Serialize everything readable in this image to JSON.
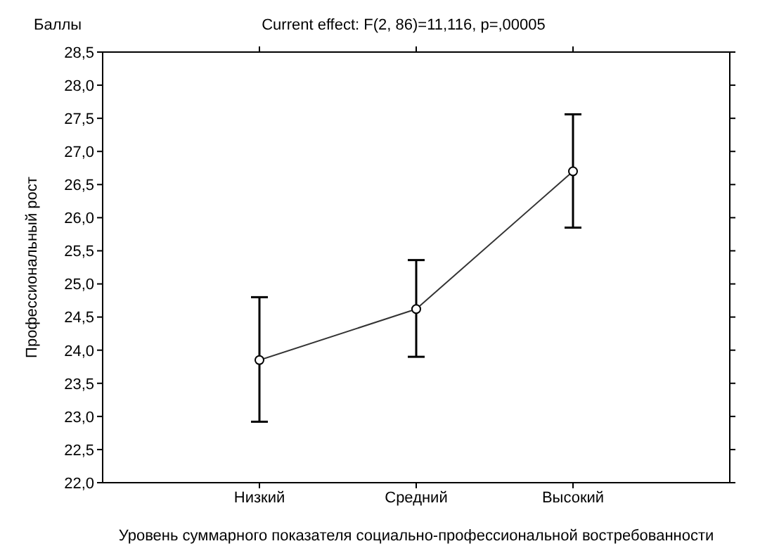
{
  "chart_data": {
    "type": "line",
    "title": "Current effect: F(2, 86)=11,116, p=,00005",
    "xlabel": "Уровень суммарного показателя социально-профессиональной востребованности",
    "ylabel": "Профессиональный рост",
    "annotations": [
      "Баллы"
    ],
    "categories": [
      "Низкий",
      "Средний",
      "Высокий"
    ],
    "series": [
      {
        "color": "#333333",
        "values": [
          23.85,
          24.62,
          26.7
        ],
        "errors": [
          [
            22.92,
            24.8
          ],
          [
            23.9,
            25.36
          ],
          [
            25.85,
            27.56
          ]
        ]
      }
    ],
    "ylim": [
      22.0,
      28.5
    ],
    "yticks": [
      {
        "value": 22.0,
        "label": "22,0"
      },
      {
        "value": 22.5,
        "label": "22,5"
      },
      {
        "value": 23.0,
        "label": "23,0"
      },
      {
        "value": 23.5,
        "label": "23,5"
      },
      {
        "value": 24.0,
        "label": "24,0"
      },
      {
        "value": 24.5,
        "label": "24,5"
      },
      {
        "value": 25.0,
        "label": "25,0"
      },
      {
        "value": 25.5,
        "label": "25,5"
      },
      {
        "value": 26.0,
        "label": "26,0"
      },
      {
        "value": 26.5,
        "label": "26,5"
      },
      {
        "value": 27.0,
        "label": "27,0"
      },
      {
        "value": 27.5,
        "label": "27,5"
      },
      {
        "value": 28.0,
        "label": "28,0"
      },
      {
        "value": 28.5,
        "label": "28,5"
      }
    ],
    "grid": false,
    "marker": "circle",
    "line_style": "solid"
  }
}
